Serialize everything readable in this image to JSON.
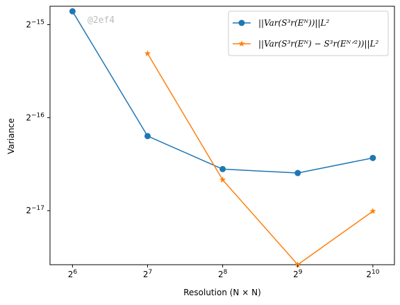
{
  "chart_data": {
    "type": "line",
    "xscale": "log2",
    "yscale": "log2",
    "xlabel": "Resolution (N × N)",
    "ylabel": "Variance",
    "xlim": [
      52,
      1250
    ],
    "ylim": [
      5.1e-06,
      3.5e-05
    ],
    "x_ticks": [
      {
        "value": 64,
        "base": "2",
        "exp": "6"
      },
      {
        "value": 128,
        "base": "2",
        "exp": "7"
      },
      {
        "value": 256,
        "base": "2",
        "exp": "8"
      },
      {
        "value": 512,
        "base": "2",
        "exp": "9"
      },
      {
        "value": 1024,
        "base": "2",
        "exp": "10"
      }
    ],
    "y_ticks": [
      {
        "value": 3.05176e-05,
        "base": "2",
        "exp": "−15"
      },
      {
        "value": 1.52588e-05,
        "base": "2",
        "exp": "−16"
      },
      {
        "value": 7.62939e-06,
        "base": "2",
        "exp": "−17"
      }
    ],
    "legend_position": "upper right",
    "grid": false,
    "series": [
      {
        "name": "||Var(S³r(Eᴺ))||L²",
        "color": "#1f77b4",
        "marker": "circle",
        "x": [
          64,
          128,
          256,
          512,
          1024
        ],
        "y": [
          3.37e-05,
          1.33e-05,
          1.04e-05,
          1.01e-05,
          1.13e-05
        ]
      },
      {
        "name": "||Var(S³r(Eᴺ) − S³r(Eᴺᐟ²))||L²",
        "color": "#ff7f0e",
        "marker": "star",
        "x": [
          128,
          256,
          512,
          1024
        ],
        "y": [
          2.46e-05,
          9.6e-06,
          5.1e-06,
          7.6e-06
        ]
      }
    ]
  },
  "watermark": "@2ef4"
}
